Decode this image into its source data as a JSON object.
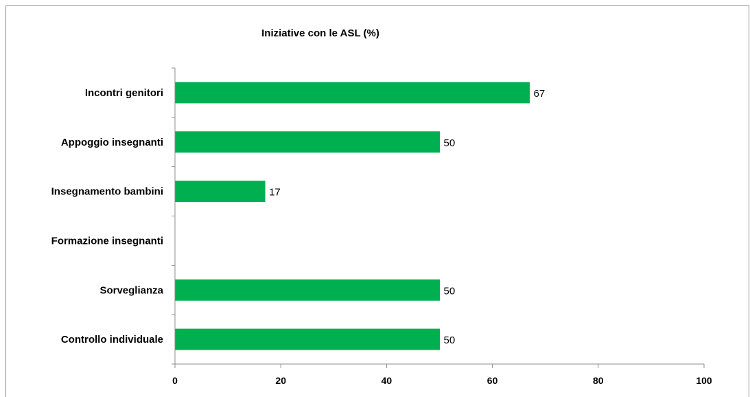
{
  "chart_data": {
    "type": "bar",
    "orientation": "horizontal",
    "title": "Iniziative con le ASL (%)",
    "categories": [
      "Incontri genitori",
      "Appoggio insegnanti",
      "Insegnamento bambini",
      "Formazione insegnanti",
      "Sorveglianza",
      "Controllo individuale"
    ],
    "values": [
      67,
      50,
      17,
      null,
      50,
      50
    ],
    "data_labels": [
      "67",
      "50",
      "17",
      "",
      "50",
      "50"
    ],
    "xlim": [
      0,
      100
    ],
    "x_ticks": [
      0,
      20,
      40,
      60,
      80,
      100
    ],
    "x_tick_labels": [
      "0",
      "20",
      "40",
      "60",
      "80",
      "100"
    ],
    "bar_color": "#00b050",
    "grid": false,
    "legend": "none"
  }
}
